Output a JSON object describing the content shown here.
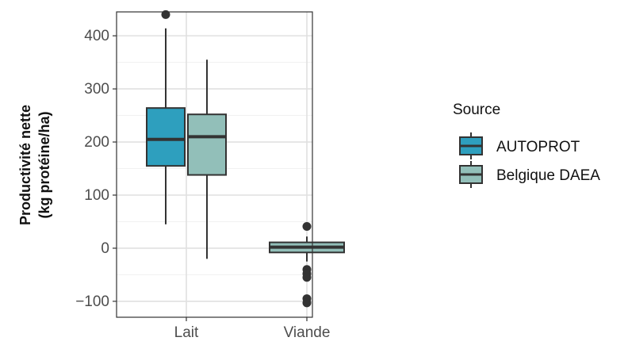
{
  "chart_data": {
    "type": "boxplot",
    "title": "",
    "xlabel": "",
    "ylabel_line1": "Productivité nette",
    "ylabel_line2": "(kg protéine/ha)",
    "ylim": [
      -130,
      445
    ],
    "yticks": [
      -100,
      0,
      100,
      200,
      300,
      400
    ],
    "ytick_labels": [
      "−100",
      "0",
      "100",
      "200",
      "300",
      "400"
    ],
    "categories": [
      "Lait",
      "Viande"
    ],
    "grid": true,
    "legend": {
      "title": "Source",
      "placement": "right"
    },
    "series": [
      {
        "name": "AUTOPROT",
        "color": "#2e9fbe",
        "boxes": [
          {
            "category": "Lait",
            "whisker_low": 45,
            "q1": 155,
            "median": 205,
            "q3": 264,
            "whisker_high": 414,
            "outliers": [
              440
            ]
          }
        ]
      },
      {
        "name": "Belgique DAEA",
        "color": "#92bfb9",
        "boxes": [
          {
            "category": "Lait",
            "whisker_low": -20,
            "q1": 138,
            "median": 210,
            "q3": 252,
            "whisker_high": 355,
            "outliers": []
          },
          {
            "category": "Viande",
            "whisker_low": -25,
            "q1": -8,
            "median": 2,
            "q3": 11,
            "whisker_high": 22,
            "outliers": [
              41,
              -40,
              -48,
              -55,
              -95,
              -103
            ]
          }
        ]
      }
    ]
  }
}
